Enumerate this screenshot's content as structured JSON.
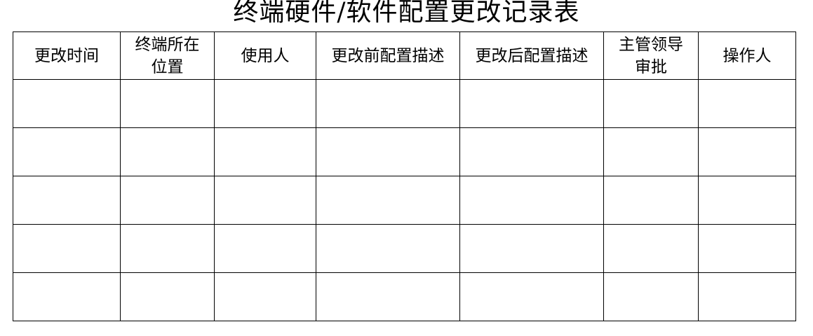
{
  "title": "终端硬件/软件配置更改记录表",
  "headers": [
    "更改时间",
    "终端所在位置",
    "使用人",
    "更改前配置描述",
    "更改后配置描述",
    "主管领导审批",
    "操作人"
  ],
  "header_lines": [
    [
      "更改时间"
    ],
    [
      "终端所在",
      "位置"
    ],
    [
      "使用人"
    ],
    [
      "更改前配置描述"
    ],
    [
      "更改后配置描述"
    ],
    [
      "主管领导",
      "审批"
    ],
    [
      "操作人"
    ]
  ],
  "rows": [
    [
      "",
      "",
      "",
      "",
      "",
      "",
      ""
    ],
    [
      "",
      "",
      "",
      "",
      "",
      "",
      ""
    ],
    [
      "",
      "",
      "",
      "",
      "",
      "",
      ""
    ],
    [
      "",
      "",
      "",
      "",
      "",
      "",
      ""
    ],
    [
      "",
      "",
      "",
      "",
      "",
      "",
      ""
    ]
  ]
}
